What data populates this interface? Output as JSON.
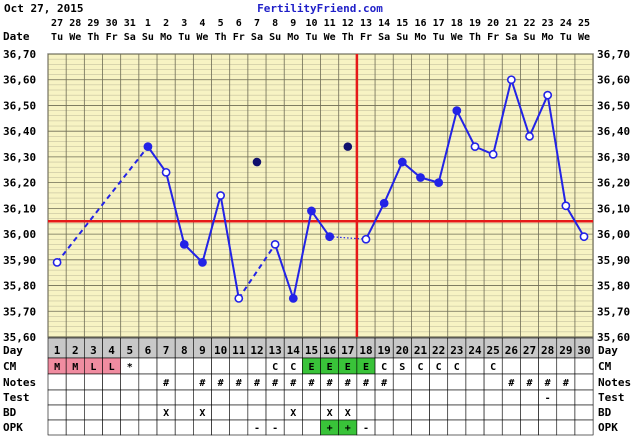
{
  "header": {
    "date": "Oct 27, 2015",
    "site": "FertilityFriend.com"
  },
  "labels": {
    "date_row": "Date",
    "day_row": "Day",
    "cm_row": "CM",
    "notes_row": "Notes",
    "test_row": "Test",
    "bd_row": "BD",
    "opk_row": "OPK"
  },
  "dates": [
    "27",
    "28",
    "29",
    "30",
    "31",
    "1",
    "2",
    "3",
    "4",
    "5",
    "6",
    "7",
    "8",
    "9",
    "10",
    "11",
    "12",
    "13",
    "14",
    "15",
    "16",
    "17",
    "18",
    "19",
    "20",
    "21",
    "22",
    "23",
    "24",
    "25"
  ],
  "weekdays": [
    "Tu",
    "We",
    "Th",
    "Fr",
    "Sa",
    "Su",
    "Mo",
    "Tu",
    "We",
    "Th",
    "Fr",
    "Sa",
    "Su",
    "Mo",
    "Tu",
    "We",
    "Th",
    "Fr",
    "Sa",
    "Su",
    "Mo",
    "Tu",
    "We",
    "Th",
    "Fr",
    "Sa",
    "Su",
    "Mo",
    "Tu",
    "We"
  ],
  "chart_data": {
    "type": "line",
    "title": "",
    "xlabel": "Day",
    "ylabel": "",
    "ylim": [
      35.6,
      36.7
    ],
    "yticks": [
      "35,60",
      "35,70",
      "35,80",
      "35,90",
      "36,00",
      "36,10",
      "36,20",
      "36,30",
      "36,40",
      "36,50",
      "36,60",
      "36,70"
    ],
    "days": [
      1,
      2,
      3,
      4,
      5,
      6,
      7,
      8,
      9,
      10,
      11,
      12,
      13,
      14,
      15,
      16,
      17,
      18,
      19,
      20,
      21,
      22,
      23,
      24,
      25,
      26,
      27,
      28,
      29,
      30
    ],
    "temps": [
      35.89,
      null,
      null,
      null,
      null,
      36.34,
      36.24,
      35.96,
      35.89,
      36.15,
      35.75,
      null,
      35.96,
      35.75,
      36.09,
      35.99,
      null,
      35.98,
      36.12,
      36.28,
      36.22,
      36.2,
      36.48,
      36.34,
      36.31,
      36.6,
      36.38,
      36.54,
      36.11,
      35.99
    ],
    "open_circle_days": [
      1,
      7,
      10,
      11,
      13,
      18,
      24,
      25,
      26,
      27,
      28,
      29,
      30
    ],
    "dashed_segments": [
      [
        1,
        6
      ],
      [
        11,
        13
      ],
      [
        16,
        18
      ]
    ],
    "excluded_points": [
      {
        "day": 12,
        "temp": 36.28
      },
      {
        "day": 17,
        "temp": 36.34
      }
    ],
    "coverline": 36.05,
    "ovulation_day": 18,
    "menstruation": {
      "1": "M",
      "2": "M",
      "3": "L",
      "4": "L",
      "5": "*"
    },
    "cm": {
      "13": "C",
      "14": "C",
      "15": "E",
      "16": "E",
      "17": "E",
      "18": "E",
      "19": "C",
      "20": "S",
      "21": "C",
      "22": "C",
      "23": "C",
      "25": "C"
    },
    "notes": {
      "7": "#",
      "9": "#",
      "10": "#",
      "11": "#",
      "12": "#",
      "13": "#",
      "14": "#",
      "15": "#",
      "16": "#",
      "17": "#",
      "18": "#",
      "19": "#",
      "26": "#",
      "27": "#",
      "28": "#",
      "29": "#"
    },
    "test": {
      "28": "-"
    },
    "bd": {
      "7": "X",
      "9": "X",
      "14": "X",
      "16": "X",
      "17": "X"
    },
    "opk": {
      "12": "-",
      "13": "-",
      "16": "+",
      "17": "+",
      "18": "-"
    },
    "colors": {
      "plot_bg": "#f7f3c3",
      "grid": "#a9a68a",
      "line": "#2323e6",
      "coverline": "#e61919",
      "day_bg": "#c8c8c8",
      "menstruation_bg": "#f08ca0",
      "fertile_bg": "#39c339",
      "opk_pos_bg": "#39c339",
      "header_text": "#1f1fc8"
    }
  }
}
